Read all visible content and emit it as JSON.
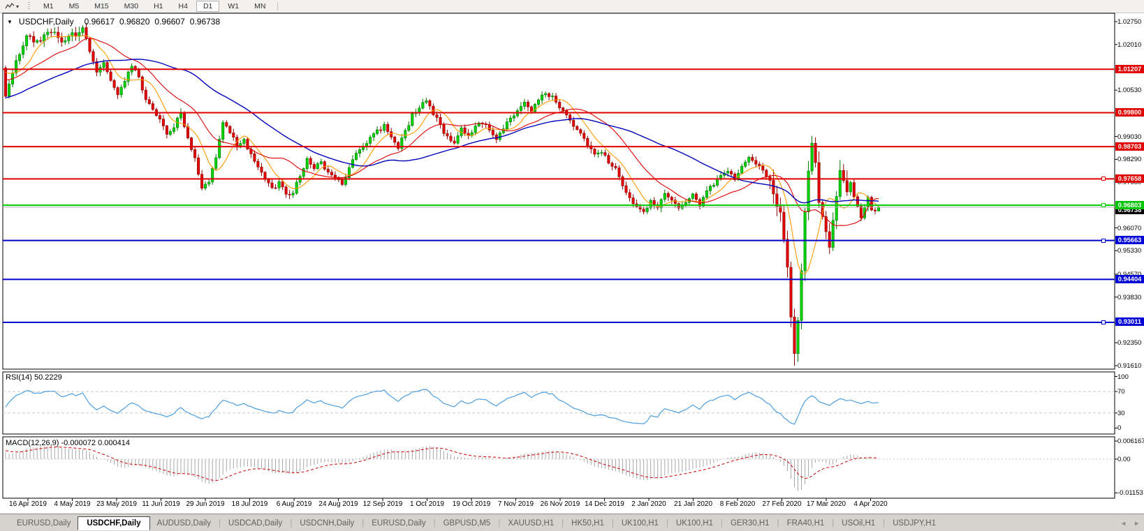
{
  "toolbar": {
    "tool_icon": "chart-cursor-icon",
    "dropdown_caret": "▾",
    "timeframes": [
      "M1",
      "M5",
      "M15",
      "M30",
      "H1",
      "H4",
      "D1",
      "W1",
      "MN"
    ],
    "active_timeframe": "D1"
  },
  "main_chart": {
    "header": {
      "collapse_triangle": "▼",
      "symbol": "USDCHF,Daily",
      "open": "0.96617",
      "high": "0.96820",
      "low": "0.96607",
      "close": "0.96738"
    },
    "price_axis_ticks": [
      "1.02750",
      "1.02010",
      "1.00530",
      "0.99030",
      "0.98290",
      "0.97550",
      "0.96070",
      "0.95330",
      "0.94570",
      "0.93830",
      "0.92350",
      "0.91610"
    ],
    "price_tags": [
      {
        "value": "1.01207",
        "price": 1.01207,
        "color": "#e00000",
        "kind": "resistance"
      },
      {
        "value": "0.99800",
        "price": 0.998,
        "color": "#e00000",
        "kind": "resistance"
      },
      {
        "value": "0.98703",
        "price": 0.98703,
        "color": "#e00000",
        "kind": "resistance"
      },
      {
        "value": "0.97658",
        "price": 0.97658,
        "color": "#e00000",
        "kind": "resistance"
      },
      {
        "value": "0.96738",
        "price": 0.96738,
        "color": "#000000",
        "kind": "current-price"
      },
      {
        "value": "0.96803",
        "price": 0.96803,
        "color": "#00c400",
        "kind": "pivot"
      },
      {
        "value": "0.95663",
        "price": 0.95663,
        "color": "#0000d8",
        "kind": "support"
      },
      {
        "value": "0.94404",
        "price": 0.94404,
        "color": "#0000d8",
        "kind": "support"
      },
      {
        "value": "0.93011",
        "price": 0.93011,
        "color": "#0000d8",
        "kind": "support"
      }
    ]
  },
  "rsi_panel": {
    "label": "RSI(14) 50.2229",
    "axis_ticks": [
      "100",
      "70",
      "30",
      "0"
    ],
    "dashed_levels": [
      70,
      30
    ]
  },
  "macd_panel": {
    "label": "MACD(12,26,9) -0.000072 0.000414",
    "axis_ticks": [
      "0.006167",
      "0.00",
      "-0.01153"
    ]
  },
  "time_axis": [
    "16 Apr 2019",
    "4 May 2019",
    "23 May 2019",
    "11 Jun 2019",
    "29 Jun 2019",
    "18 Jul 2019",
    "6 Aug 2019",
    "24 Aug 2019",
    "12 Sep 2019",
    "1 Oct 2019",
    "19 Oct 2019",
    "7 Nov 2019",
    "26 Nov 2019",
    "14 Dec 2019",
    "2 Jan 2020",
    "21 Jan 2020",
    "8 Feb 2020",
    "27 Feb 2020",
    "17 Mar 2020",
    "4 Apr 2020"
  ],
  "tab_bar": {
    "tabs": [
      {
        "label": "EURUSD,Daily",
        "active": false
      },
      {
        "label": "USDCHF,Daily",
        "active": true
      },
      {
        "label": "AUDUSD,Daily",
        "active": false
      },
      {
        "label": "USDCAD,Daily",
        "active": false
      },
      {
        "label": "USDCNH,Daily",
        "active": false
      },
      {
        "label": "EURUSD,Daily",
        "active": false
      },
      {
        "label": "GBPUSD,M5",
        "active": false
      },
      {
        "label": "XAUUSD,H1",
        "active": false
      },
      {
        "label": "HK50,H1",
        "active": false
      },
      {
        "label": "UK100,H1",
        "active": false
      },
      {
        "label": "UK100,H1",
        "active": false
      },
      {
        "label": "GER30,H1",
        "active": false
      },
      {
        "label": "FRA40,H1",
        "active": false
      },
      {
        "label": "USOil,H1",
        "active": false
      },
      {
        "label": "USDJPY,H1",
        "active": false
      }
    ],
    "scroll_left": "◄",
    "scroll_right": "►"
  },
  "colors": {
    "bull_fill": "#00d400",
    "bull_stroke": "#007600",
    "bear_fill": "#e00000",
    "bear_stroke": "#8f0000",
    "ma_fast": "#ff9900",
    "ma_mid": "#dd0000",
    "ma_slow": "#0000bb",
    "level_red": "#e00000",
    "level_green": "#00cc00",
    "level_blue": "#0000cc",
    "current_price_line": "#b4b4b4",
    "rsi_line": "#4d9ede",
    "rsi_dash": "#c8c8c8",
    "macd_hist": "#a8a8a8",
    "macd_signal": "#cc0000",
    "pane_border": "#000000"
  },
  "chart_data": {
    "type": "candlestick",
    "symbol": "USDCHF",
    "timeframe": "Daily",
    "ohlc_current": {
      "open": 0.96617,
      "high": 0.9682,
      "low": 0.96607,
      "close": 0.96738
    },
    "y_range": [
      0.9161,
      1.0275
    ],
    "bars_visible": 250,
    "x_axis_dates": [
      "16 Apr 2019",
      "4 May 2019",
      "23 May 2019",
      "11 Jun 2019",
      "29 Jun 2019",
      "18 Jul 2019",
      "6 Aug 2019",
      "24 Aug 2019",
      "12 Sep 2019",
      "1 Oct 2019",
      "19 Oct 2019",
      "7 Nov 2019",
      "26 Nov 2019",
      "14 Dec 2019",
      "2 Jan 2020",
      "21 Jan 2020",
      "8 Feb 2020",
      "27 Feb 2020",
      "17 Mar 2020",
      "4 Apr 2020"
    ],
    "close_path_anchors": [
      [
        0,
        1.004
      ],
      [
        2,
        1.011
      ],
      [
        4,
        1.0175
      ],
      [
        6,
        1.023
      ],
      [
        9,
        1.021
      ],
      [
        12,
        1.0245
      ],
      [
        14,
        1.025
      ],
      [
        16,
        1.021
      ],
      [
        18,
        1.0235
      ],
      [
        20,
        1.0225
      ],
      [
        22,
        1.025
      ],
      [
        24,
        1.018
      ],
      [
        26,
        1.011
      ],
      [
        28,
        1.014
      ],
      [
        30,
        1.008
      ],
      [
        32,
        1.0045
      ],
      [
        34,
        1.008
      ],
      [
        36,
        1.0135
      ],
      [
        38,
        1.009
      ],
      [
        40,
        1.002
      ],
      [
        42,
        0.999
      ],
      [
        44,
        0.996
      ],
      [
        46,
        0.9905
      ],
      [
        48,
        0.9935
      ],
      [
        50,
        0.998
      ],
      [
        52,
        0.9905
      ],
      [
        54,
        0.983
      ],
      [
        56,
        0.973
      ],
      [
        58,
        0.976
      ],
      [
        60,
        0.984
      ],
      [
        62,
        0.995
      ],
      [
        64,
        0.992
      ],
      [
        66,
        0.987
      ],
      [
        68,
        0.989
      ],
      [
        70,
        0.985
      ],
      [
        72,
        0.9805
      ],
      [
        74,
        0.976
      ],
      [
        76,
        0.9735
      ],
      [
        78,
        0.975
      ],
      [
        80,
        0.9715
      ],
      [
        82,
        0.9725
      ],
      [
        84,
        0.977
      ],
      [
        86,
        0.983
      ],
      [
        88,
        0.9795
      ],
      [
        90,
        0.982
      ],
      [
        92,
        0.978
      ],
      [
        94,
        0.977
      ],
      [
        96,
        0.9745
      ],
      [
        98,
        0.98
      ],
      [
        100,
        0.985
      ],
      [
        102,
        0.987
      ],
      [
        104,
        0.99
      ],
      [
        106,
        0.992
      ],
      [
        108,
        0.9935
      ],
      [
        110,
        0.9905
      ],
      [
        112,
        0.987
      ],
      [
        114,
        0.992
      ],
      [
        116,
        0.997
      ],
      [
        118,
        1.0
      ],
      [
        120,
        1.002
      ],
      [
        122,
        0.998
      ],
      [
        124,
        0.994
      ],
      [
        126,
        0.99
      ],
      [
        128,
        0.9885
      ],
      [
        130,
        0.993
      ],
      [
        132,
        0.99
      ],
      [
        134,
        0.994
      ],
      [
        136,
        0.995
      ],
      [
        138,
        0.992
      ],
      [
        140,
        0.99
      ],
      [
        142,
        0.993
      ],
      [
        144,
        0.996
      ],
      [
        146,
        0.999
      ],
      [
        148,
        1.001
      ],
      [
        150,
        0.999
      ],
      [
        152,
        1.002
      ],
      [
        154,
        1.004
      ],
      [
        156,
        1.003
      ],
      [
        158,
        1.0
      ],
      [
        160,
        0.997
      ],
      [
        162,
        0.994
      ],
      [
        164,
        0.991
      ],
      [
        166,
        0.988
      ],
      [
        168,
        0.985
      ],
      [
        170,
        0.9855
      ],
      [
        172,
        0.982
      ],
      [
        174,
        0.98
      ],
      [
        176,
        0.975
      ],
      [
        178,
        0.97
      ],
      [
        180,
        0.9675
      ],
      [
        182,
        0.9665
      ],
      [
        184,
        0.969
      ],
      [
        186,
        0.9675
      ],
      [
        188,
        0.972
      ],
      [
        190,
        0.97
      ],
      [
        192,
        0.9675
      ],
      [
        194,
        0.969
      ],
      [
        196,
        0.9715
      ],
      [
        198,
        0.968
      ],
      [
        200,
        0.972
      ],
      [
        202,
        0.975
      ],
      [
        204,
        0.9775
      ],
      [
        206,
        0.979
      ],
      [
        208,
        0.977
      ],
      [
        210,
        0.98
      ],
      [
        212,
        0.983
      ],
      [
        214,
        0.982
      ],
      [
        216,
        0.979
      ],
      [
        218,
        0.976
      ],
      [
        220,
        0.969
      ],
      [
        221,
        0.964
      ],
      [
        222,
        0.956
      ],
      [
        223,
        0.948
      ],
      [
        224,
        0.933
      ],
      [
        225,
        0.919
      ],
      [
        226,
        0.929
      ],
      [
        227,
        0.945
      ],
      [
        228,
        0.964
      ],
      [
        229,
        0.979
      ],
      [
        230,
        0.988
      ],
      [
        231,
        0.981
      ],
      [
        232,
        0.97
      ],
      [
        233,
        0.964
      ],
      [
        234,
        0.958
      ],
      [
        235,
        0.954
      ],
      [
        236,
        0.964
      ],
      [
        237,
        0.972
      ],
      [
        238,
        0.978
      ],
      [
        239,
        0.976
      ],
      [
        240,
        0.973
      ],
      [
        241,
        0.976
      ],
      [
        242,
        0.971
      ],
      [
        243,
        0.967
      ],
      [
        244,
        0.9645
      ],
      [
        245,
        0.967
      ],
      [
        246,
        0.97
      ],
      [
        247,
        0.9665
      ],
      [
        248,
        0.9662
      ],
      [
        249,
        0.96738
      ]
    ],
    "extremes": {
      "crash_low": {
        "bar": 225,
        "price": 0.9161
      },
      "rebound_high": {
        "bar": 230,
        "price": 0.9905
      },
      "top_high": {
        "bar": 14,
        "price": 1.0257
      }
    },
    "overlays": {
      "horizontal_lines": [
        {
          "price": 1.01207,
          "color": "red",
          "width": 2
        },
        {
          "price": 0.998,
          "color": "red",
          "width": 2
        },
        {
          "price": 0.98703,
          "color": "red",
          "width": 2
        },
        {
          "price": 0.97658,
          "color": "red",
          "width": 2,
          "handle": true
        },
        {
          "price": 0.96803,
          "color": "green",
          "width": 2,
          "handle": true
        },
        {
          "price": 0.95663,
          "color": "blue",
          "width": 2,
          "handle": true
        },
        {
          "price": 0.94404,
          "color": "blue",
          "width": 2
        },
        {
          "price": 0.93011,
          "color": "blue",
          "width": 2,
          "handle": true
        }
      ],
      "current_price_line": 0.96738,
      "moving_averages": [
        {
          "name": "fast",
          "period": 8,
          "color": "orange"
        },
        {
          "name": "medium",
          "period": 21,
          "color": "red"
        },
        {
          "name": "slow",
          "period": 50,
          "color": "blue"
        }
      ]
    },
    "indicators": [
      {
        "name": "RSI",
        "period": 14,
        "current": 50.2229,
        "range": [
          0,
          100
        ],
        "levels": [
          30,
          70
        ]
      },
      {
        "name": "MACD",
        "params": [
          12,
          26,
          9
        ],
        "current_values": [
          -7.2e-05,
          0.000414
        ],
        "range": [
          -0.01153,
          0.006167
        ]
      }
    ]
  }
}
